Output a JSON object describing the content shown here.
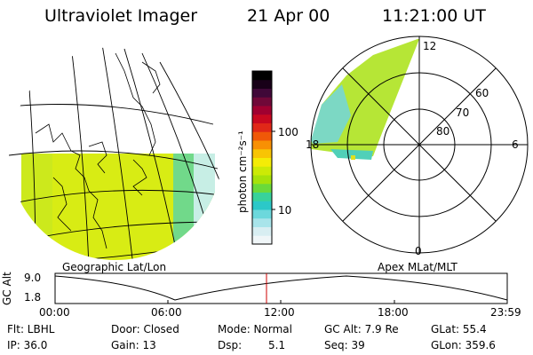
{
  "header": {
    "instrument": "Ultraviolet Imager",
    "date": "21 Apr 00",
    "time": "11:21:00 UT"
  },
  "colorbar": {
    "unit_label": "photon cm⁻²s⁻¹",
    "ticks": [
      "100",
      "10"
    ],
    "colors": [
      "#f0f6f8",
      "#d8eef2",
      "#a8e4ea",
      "#6cd8dc",
      "#2cc8c8",
      "#38d29a",
      "#6ada3a",
      "#a6e20a",
      "#ccea06",
      "#f4ec06",
      "#f8c404",
      "#f89004",
      "#f05808",
      "#e02818",
      "#c80820",
      "#a00030",
      "#700838",
      "#400838",
      "#180018",
      "#000000"
    ]
  },
  "globe_panel": {
    "label": "Geographic Lat/Lon",
    "image_color": "#d8ec14",
    "edge_color": "#58d4a8"
  },
  "polar_panel": {
    "label": "Apex MLat/MLT",
    "mlt_labels": [
      "12",
      "18",
      "6",
      "0"
    ],
    "mlat_labels": [
      "60",
      "70",
      "80"
    ]
  },
  "altitude_plot": {
    "ylabel": "GC Alt",
    "yticks": [
      "9.0",
      "1.8"
    ],
    "xticks": [
      "00:00",
      "06:00",
      "12:00",
      "18:00",
      "23:59"
    ],
    "marker_color": "#cc0000"
  },
  "info": {
    "flt": "Flt: LBHL",
    "door": "Door: Closed",
    "mode": "Mode: Normal",
    "gc_alt": "GC Alt: 7.9 Re",
    "glat": "GLat: 55.4",
    "ip": "IP: 36.0",
    "gain": "Gain: 13",
    "dsp_label": "Dsp:",
    "dsp_value": "5.1",
    "seq": "Seq: 39",
    "glon": "GLon: 359.6"
  }
}
